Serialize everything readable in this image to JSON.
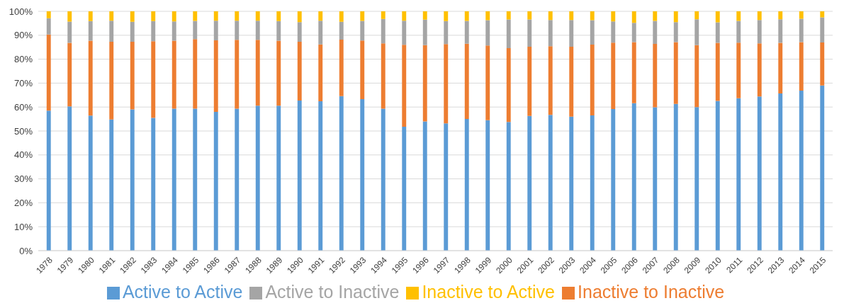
{
  "chart_data": {
    "type": "bar",
    "stacked": true,
    "categories": [
      "1978",
      "1979",
      "1980",
      "1981",
      "1982",
      "1983",
      "1984",
      "1985",
      "1986",
      "1987",
      "1988",
      "1989",
      "1990",
      "1991",
      "1992",
      "1993",
      "1994",
      "1995",
      "1996",
      "1997",
      "1998",
      "1999",
      "2000",
      "2001",
      "2002",
      "2003",
      "2004",
      "2005",
      "2006",
      "2007",
      "2008",
      "2009",
      "2010",
      "2011",
      "2012",
      "2013",
      "2014",
      "2015"
    ],
    "series": [
      {
        "name": "Active to Active",
        "color": "#5b9bd5",
        "values": [
          58.5,
          60.3,
          56.4,
          54.8,
          59,
          55.5,
          59.3,
          59.3,
          58,
          59.3,
          60.6,
          60.6,
          62.7,
          62.4,
          64.6,
          63.3,
          59.3,
          51.8,
          54,
          53.2,
          55,
          54.5,
          53.8,
          56.3,
          56.7,
          56,
          56.5,
          59.2,
          61.6,
          59.9,
          61.3,
          60,
          62.6,
          63.7,
          64.4,
          65.7,
          66.9,
          69
        ]
      },
      {
        "name": "Inactive to Inactive",
        "color": "#ed7d31",
        "values": [
          31.8,
          26.5,
          31.3,
          32.5,
          28.3,
          32,
          28.4,
          29.1,
          29.9,
          28.8,
          27.5,
          27.1,
          24.6,
          23.8,
          23.6,
          24.5,
          27.3,
          34.2,
          31.9,
          33.1,
          31.5,
          31.2,
          30.8,
          28.9,
          28.7,
          29.2,
          29.6,
          27.7,
          25.5,
          26.5,
          25.8,
          25.9,
          24.2,
          23.2,
          22.2,
          21.1,
          20.2,
          18
        ]
      },
      {
        "name": "Active to Inactive",
        "color": "#a5a5a5",
        "values": [
          6.8,
          8.9,
          8.2,
          8.8,
          8.3,
          8.4,
          8.1,
          7.6,
          8.2,
          8,
          8,
          8.2,
          8.2,
          9.9,
          7.4,
          8.2,
          10.2,
          10.1,
          10.6,
          9.6,
          9.5,
          10.6,
          12,
          11.4,
          11,
          11.2,
          10.2,
          8.9,
          8.1,
          9.6,
          8.4,
          10.8,
          8.6,
          9.1,
          9.8,
          9.9,
          9.8,
          10.5
        ]
      },
      {
        "name": "Inactive to Active",
        "color": "#ffc000",
        "values": [
          2.9,
          4.3,
          4.1,
          3.9,
          4.4,
          4.1,
          4.2,
          4,
          3.9,
          3.9,
          3.9,
          4.1,
          4.5,
          3.9,
          4.4,
          4,
          3.2,
          3.9,
          3.5,
          4.1,
          4,
          3.7,
          3.4,
          3.4,
          3.6,
          3.6,
          3.7,
          4.2,
          4.8,
          4,
          4.5,
          3.3,
          4.6,
          4,
          3.6,
          3.3,
          3.1,
          2.5
        ]
      }
    ],
    "ylim": [
      0,
      100
    ],
    "yticks": [
      {
        "value": 0,
        "label": "0%"
      },
      {
        "value": 10,
        "label": "10%"
      },
      {
        "value": 20,
        "label": "20%"
      },
      {
        "value": 30,
        "label": "30%"
      },
      {
        "value": 40,
        "label": "40%"
      },
      {
        "value": 50,
        "label": "50%"
      },
      {
        "value": 60,
        "label": "60%"
      },
      {
        "value": 70,
        "label": "70%"
      },
      {
        "value": 80,
        "label": "80%"
      },
      {
        "value": 90,
        "label": "90%"
      },
      {
        "value": 100,
        "label": "100%"
      }
    ],
    "grid": "y",
    "legend": "bottom"
  }
}
